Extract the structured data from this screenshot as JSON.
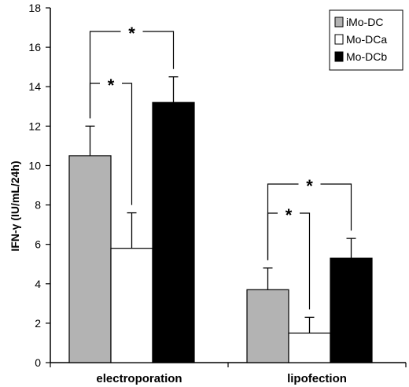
{
  "chart_data": {
    "type": "bar",
    "ylabel": "IFN-γ (IU/mL/24h)",
    "ylim": [
      0,
      18
    ],
    "yticks": [
      0,
      2,
      4,
      6,
      8,
      10,
      12,
      14,
      16,
      18
    ],
    "categories": [
      "electroporation",
      "lipofection"
    ],
    "series": [
      {
        "name": "iMo-DC",
        "color": "#b3b3b3",
        "values": [
          10.5,
          3.7
        ],
        "errors": [
          1.5,
          1.1
        ]
      },
      {
        "name": "Mo-DCa",
        "color": "#ffffff",
        "values": [
          5.8,
          1.5
        ],
        "errors": [
          1.8,
          0.8
        ]
      },
      {
        "name": "Mo-DCb",
        "color": "#000000",
        "values": [
          13.2,
          5.3
        ],
        "errors": [
          1.3,
          1.0
        ]
      }
    ],
    "significance": [
      {
        "category": 0,
        "from_series": 0,
        "to_series": 2,
        "label": "*"
      },
      {
        "category": 0,
        "from_series": 0,
        "to_series": 1,
        "label": "*"
      },
      {
        "category": 1,
        "from_series": 0,
        "to_series": 2,
        "label": "*"
      },
      {
        "category": 1,
        "from_series": 0,
        "to_series": 1,
        "label": "*"
      }
    ],
    "legend_position": "top-right",
    "grid": false
  }
}
